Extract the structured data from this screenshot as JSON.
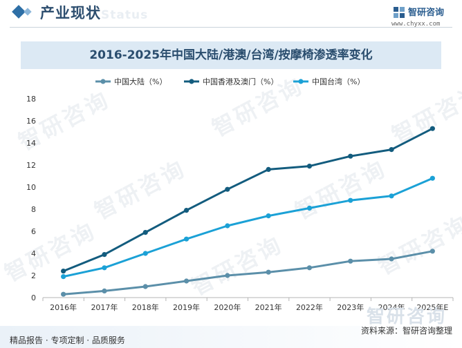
{
  "header": {
    "title": "产业现状",
    "ghost_text": "Status",
    "brand_name": "智研咨询",
    "brand_url": "www.chyxx.com"
  },
  "watermark_text": "智研咨询",
  "footer": {
    "left": "精品报告 · 专项定制 · 品质服务",
    "right": "资料来源：智研咨询整理",
    "ghost": "智研咨询"
  },
  "colors": {
    "accent": "#2e6fa6",
    "title_band": "#dce9f4"
  },
  "chart_data": {
    "type": "line",
    "title": "2016-2025年中国大陆/港澳/台湾/按摩椅渗透率变化",
    "categories": [
      "2016年",
      "2017年",
      "2018年",
      "2019年",
      "2020年",
      "2021年",
      "2022年",
      "2023年",
      "2024年",
      "2025年E"
    ],
    "ylim": [
      0,
      18
    ],
    "yticks": [
      0,
      2,
      4,
      6,
      8,
      10,
      12,
      14,
      16,
      18
    ],
    "legend_position": "top",
    "grid": false,
    "series": [
      {
        "name": "中国大陆（%）",
        "color": "#5b8fa9",
        "values": [
          0.3,
          0.6,
          1.0,
          1.5,
          2.0,
          2.3,
          2.7,
          3.3,
          3.5,
          4.2
        ]
      },
      {
        "name": "中国香港及澳门（%）",
        "color": "#135c7e",
        "values": [
          2.4,
          3.9,
          5.9,
          7.9,
          9.8,
          11.6,
          11.9,
          12.8,
          13.4,
          15.3
        ]
      },
      {
        "name": "中国台湾（%）",
        "color": "#1ba1d6",
        "values": [
          1.9,
          2.7,
          4.0,
          5.3,
          6.5,
          7.4,
          8.1,
          8.8,
          9.2,
          10.8
        ]
      }
    ]
  }
}
